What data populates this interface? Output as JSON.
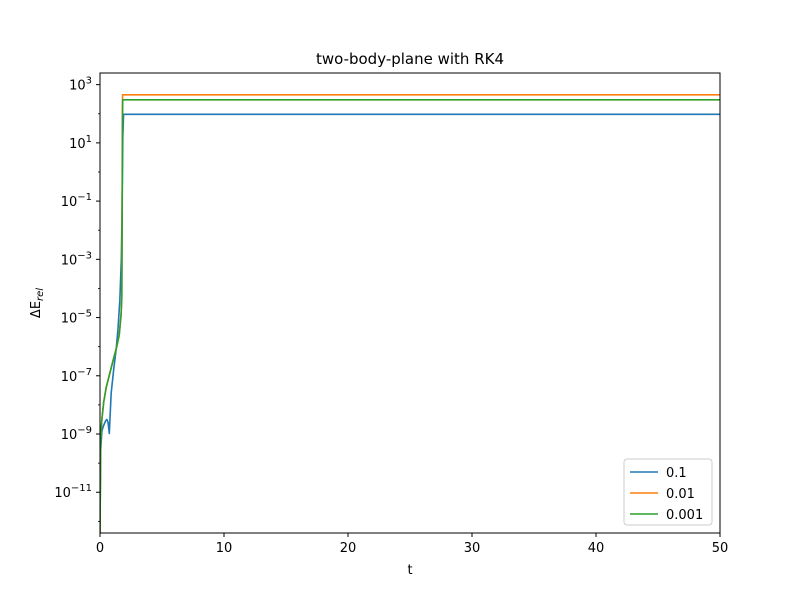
{
  "chart_data": {
    "type": "line",
    "title": "two-body-plane with RK4",
    "xlabel": "t",
    "ylabel": "ΔE",
    "ylabel_sub": "rel",
    "xlim": [
      0,
      50
    ],
    "ylim_exp": [
      -12.4,
      3.4
    ],
    "yscale": "log",
    "xticks": [
      0,
      10,
      20,
      30,
      40,
      50
    ],
    "yticks_exp": [
      -11,
      -9,
      -7,
      -5,
      -3,
      -1,
      1,
      3
    ],
    "grid": false,
    "legend_position": "lower-right",
    "series": [
      {
        "name": "0.1",
        "color": "#1f77b4",
        "points": [
          [
            0.0,
            -12.4
          ],
          [
            0.05,
            -9.6
          ],
          [
            0.15,
            -8.9
          ],
          [
            0.3,
            -8.7
          ],
          [
            0.45,
            -8.55
          ],
          [
            0.55,
            -8.5
          ],
          [
            0.65,
            -8.6
          ],
          [
            0.75,
            -8.98
          ],
          [
            0.9,
            -7.6
          ],
          [
            1.1,
            -6.8
          ],
          [
            1.3,
            -6.1
          ],
          [
            1.45,
            -5.4
          ],
          [
            1.6,
            -4.4
          ],
          [
            1.72,
            -3.0
          ],
          [
            1.78,
            -1.3
          ],
          [
            1.84,
            1.2
          ],
          [
            1.9,
            1.98
          ],
          [
            50,
            1.98
          ]
        ]
      },
      {
        "name": "0.01",
        "color": "#ff7f0e",
        "points": [
          [
            0.0,
            -12.4
          ],
          [
            0.05,
            -9.2
          ],
          [
            0.15,
            -8.5
          ],
          [
            0.3,
            -7.9
          ],
          [
            0.5,
            -7.4
          ],
          [
            0.8,
            -6.9
          ],
          [
            1.1,
            -6.4
          ],
          [
            1.35,
            -6.0
          ],
          [
            1.55,
            -5.6
          ],
          [
            1.7,
            -4.9
          ],
          [
            1.75,
            -4.4
          ],
          [
            1.78,
            -2.0
          ],
          [
            1.8,
            1.5
          ],
          [
            1.82,
            2.65
          ],
          [
            50,
            2.65
          ]
        ]
      },
      {
        "name": "0.001",
        "color": "#2ca02c",
        "points": [
          [
            0.0,
            -12.4
          ],
          [
            0.05,
            -9.2
          ],
          [
            0.15,
            -8.5
          ],
          [
            0.3,
            -7.9
          ],
          [
            0.5,
            -7.4
          ],
          [
            0.8,
            -6.9
          ],
          [
            1.1,
            -6.4
          ],
          [
            1.35,
            -6.0
          ],
          [
            1.55,
            -5.6
          ],
          [
            1.7,
            -4.9
          ],
          [
            1.76,
            -4.3
          ],
          [
            1.79,
            -1.5
          ],
          [
            1.81,
            1.6
          ],
          [
            1.83,
            2.48
          ],
          [
            50,
            2.48
          ]
        ]
      }
    ]
  }
}
